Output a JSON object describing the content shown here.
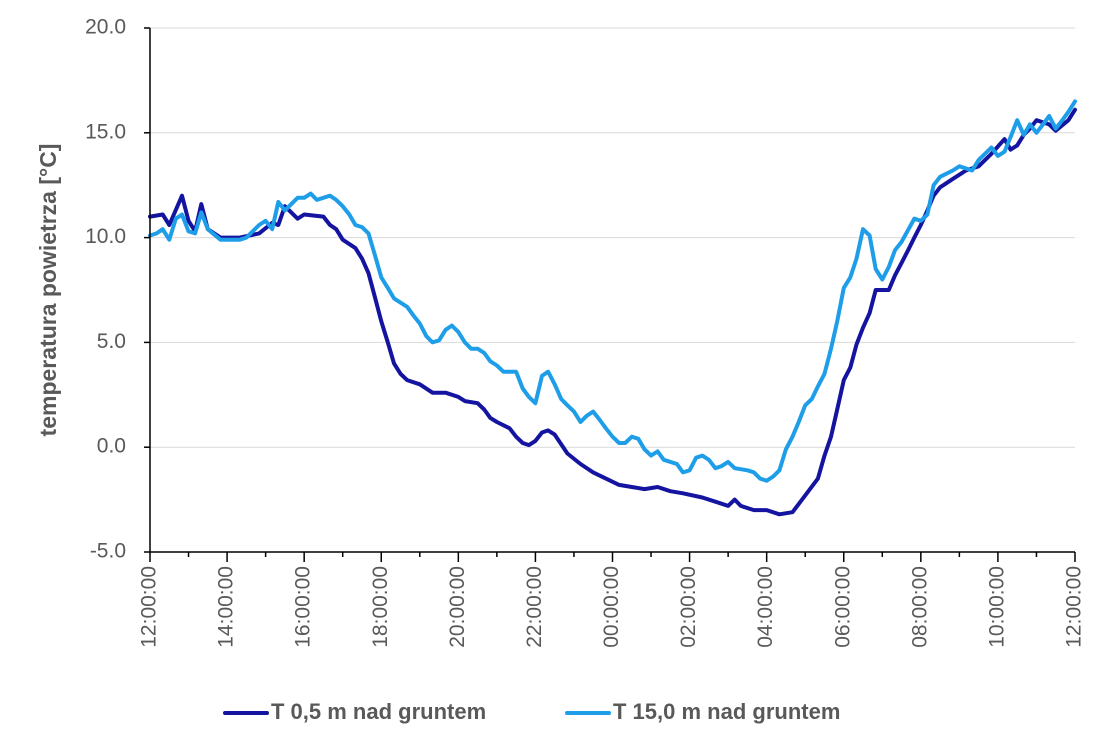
{
  "chart_data": {
    "type": "line",
    "ylabel": "temperatura powietrza [°C]",
    "xlabel": "",
    "ylim": [
      -5,
      20
    ],
    "y_ticks": [
      "-5.0",
      "0.0",
      "5.0",
      "10.0",
      "15.0",
      "20.0"
    ],
    "y_tick_values": [
      -5,
      0,
      5,
      10,
      15,
      20
    ],
    "x_start": "12:00:00",
    "x_end": "12:00:00 (next day)",
    "x_tick_labels": [
      "12:00:00",
      "14:00:00",
      "16:00:00",
      "18:00:00",
      "20:00:00",
      "22:00:00",
      "00:00:00",
      "02:00:00",
      "04:00:00",
      "06:00:00",
      "08:00:00",
      "10:00:00",
      "12:00:00"
    ],
    "x_tick_hours": [
      0,
      2,
      4,
      6,
      8,
      10,
      12,
      14,
      16,
      18,
      20,
      22,
      24
    ],
    "grid": "horizontal",
    "legend_position": "bottom",
    "series": [
      {
        "name": "T 0,5 m nad gruntem",
        "color": "#1414a0",
        "points": [
          [
            0,
            11
          ],
          [
            0.33,
            11.1
          ],
          [
            0.5,
            10.6
          ],
          [
            0.83,
            12
          ],
          [
            1,
            10.8
          ],
          [
            1.17,
            10.3
          ],
          [
            1.33,
            11.6
          ],
          [
            1.5,
            10.4
          ],
          [
            1.83,
            10
          ],
          [
            2.33,
            10
          ],
          [
            2.83,
            10.2
          ],
          [
            3.17,
            10.7
          ],
          [
            3.33,
            10.6
          ],
          [
            3.5,
            11.5
          ],
          [
            3.83,
            10.9
          ],
          [
            4,
            11.1
          ],
          [
            4.5,
            11
          ],
          [
            4.67,
            10.6
          ],
          [
            4.83,
            10.4
          ],
          [
            5,
            9.9
          ],
          [
            5.33,
            9.5
          ],
          [
            5.5,
            9
          ],
          [
            5.67,
            8.3
          ],
          [
            5.83,
            7.2
          ],
          [
            6,
            6
          ],
          [
            6.17,
            5
          ],
          [
            6.33,
            4
          ],
          [
            6.5,
            3.5
          ],
          [
            6.67,
            3.2
          ],
          [
            7,
            3
          ],
          [
            7.33,
            2.6
          ],
          [
            7.67,
            2.6
          ],
          [
            8,
            2.4
          ],
          [
            8.17,
            2.2
          ],
          [
            8.5,
            2.1
          ],
          [
            8.67,
            1.8
          ],
          [
            8.83,
            1.4
          ],
          [
            9,
            1.2
          ],
          [
            9.33,
            0.9
          ],
          [
            9.5,
            0.5
          ],
          [
            9.67,
            0.2
          ],
          [
            9.83,
            0.1
          ],
          [
            10,
            0.3
          ],
          [
            10.17,
            0.7
          ],
          [
            10.33,
            0.8
          ],
          [
            10.5,
            0.6
          ],
          [
            10.83,
            -0.3
          ],
          [
            11.17,
            -0.8
          ],
          [
            11.5,
            -1.2
          ],
          [
            11.83,
            -1.5
          ],
          [
            12.17,
            -1.8
          ],
          [
            12.5,
            -1.9
          ],
          [
            12.83,
            -2
          ],
          [
            13.17,
            -1.9
          ],
          [
            13.5,
            -2.1
          ],
          [
            13.83,
            -2.2
          ],
          [
            14.33,
            -2.4
          ],
          [
            14.67,
            -2.6
          ],
          [
            15,
            -2.8
          ],
          [
            15.17,
            -2.5
          ],
          [
            15.33,
            -2.8
          ],
          [
            15.67,
            -3
          ],
          [
            16,
            -3
          ],
          [
            16.33,
            -3.2
          ],
          [
            16.67,
            -3.1
          ],
          [
            17,
            -2.3
          ],
          [
            17.33,
            -1.5
          ],
          [
            17.5,
            -0.4
          ],
          [
            17.67,
            0.5
          ],
          [
            17.83,
            1.8
          ],
          [
            18,
            3.2
          ],
          [
            18.17,
            3.8
          ],
          [
            18.33,
            4.9
          ],
          [
            18.5,
            5.7
          ],
          [
            18.67,
            6.4
          ],
          [
            18.83,
            7.5
          ],
          [
            19.17,
            7.5
          ],
          [
            19.33,
            8.2
          ],
          [
            19.5,
            8.8
          ],
          [
            19.67,
            9.4
          ],
          [
            19.83,
            10
          ],
          [
            20,
            10.6
          ],
          [
            20.17,
            11.3
          ],
          [
            20.33,
            12
          ],
          [
            20.5,
            12.4
          ],
          [
            20.83,
            12.8
          ],
          [
            21,
            13
          ],
          [
            21.17,
            13.2
          ],
          [
            21.5,
            13.4
          ],
          [
            21.83,
            14
          ],
          [
            22.17,
            14.7
          ],
          [
            22.33,
            14.2
          ],
          [
            22.5,
            14.4
          ],
          [
            22.67,
            14.9
          ],
          [
            22.83,
            15.2
          ],
          [
            23,
            15.6
          ],
          [
            23.33,
            15.4
          ],
          [
            23.5,
            15.1
          ],
          [
            23.83,
            15.6
          ],
          [
            24,
            16.1
          ]
        ]
      },
      {
        "name": "T 15,0 m nad gruntem",
        "color": "#1e9ee8",
        "points": [
          [
            0,
            10.1
          ],
          [
            0.17,
            10.2
          ],
          [
            0.33,
            10.4
          ],
          [
            0.5,
            9.9
          ],
          [
            0.67,
            10.9
          ],
          [
            0.83,
            11.1
          ],
          [
            1,
            10.3
          ],
          [
            1.17,
            10.2
          ],
          [
            1.33,
            11.2
          ],
          [
            1.5,
            10.4
          ],
          [
            1.83,
            9.9
          ],
          [
            2.33,
            9.9
          ],
          [
            2.5,
            10
          ],
          [
            2.83,
            10.6
          ],
          [
            3,
            10.8
          ],
          [
            3.17,
            10.4
          ],
          [
            3.33,
            11.7
          ],
          [
            3.5,
            11.3
          ],
          [
            3.83,
            11.9
          ],
          [
            4,
            11.9
          ],
          [
            4.17,
            12.1
          ],
          [
            4.33,
            11.8
          ],
          [
            4.67,
            12
          ],
          [
            4.83,
            11.8
          ],
          [
            5,
            11.5
          ],
          [
            5.17,
            11.1
          ],
          [
            5.33,
            10.6
          ],
          [
            5.5,
            10.5
          ],
          [
            5.67,
            10.2
          ],
          [
            5.83,
            9.2
          ],
          [
            6,
            8.1
          ],
          [
            6.17,
            7.6
          ],
          [
            6.33,
            7.1
          ],
          [
            6.67,
            6.7
          ],
          [
            6.83,
            6.3
          ],
          [
            7,
            5.9
          ],
          [
            7.17,
            5.3
          ],
          [
            7.33,
            5
          ],
          [
            7.5,
            5.1
          ],
          [
            7.67,
            5.6
          ],
          [
            7.83,
            5.8
          ],
          [
            8,
            5.5
          ],
          [
            8.17,
            5
          ],
          [
            8.33,
            4.7
          ],
          [
            8.5,
            4.7
          ],
          [
            8.67,
            4.5
          ],
          [
            8.83,
            4.1
          ],
          [
            9,
            3.9
          ],
          [
            9.17,
            3.6
          ],
          [
            9.5,
            3.6
          ],
          [
            9.67,
            2.8
          ],
          [
            9.83,
            2.4
          ],
          [
            10,
            2.1
          ],
          [
            10.17,
            3.4
          ],
          [
            10.33,
            3.6
          ],
          [
            10.5,
            3
          ],
          [
            10.67,
            2.3
          ],
          [
            10.83,
            2
          ],
          [
            11,
            1.7
          ],
          [
            11.17,
            1.2
          ],
          [
            11.33,
            1.5
          ],
          [
            11.5,
            1.7
          ],
          [
            11.67,
            1.3
          ],
          [
            11.83,
            0.9
          ],
          [
            12,
            0.5
          ],
          [
            12.17,
            0.2
          ],
          [
            12.33,
            0.2
          ],
          [
            12.5,
            0.5
          ],
          [
            12.67,
            0.4
          ],
          [
            12.83,
            -0.1
          ],
          [
            13,
            -0.4
          ],
          [
            13.17,
            -0.2
          ],
          [
            13.33,
            -0.6
          ],
          [
            13.67,
            -0.8
          ],
          [
            13.83,
            -1.2
          ],
          [
            14,
            -1.1
          ],
          [
            14.17,
            -0.5
          ],
          [
            14.33,
            -0.4
          ],
          [
            14.5,
            -0.6
          ],
          [
            14.67,
            -1
          ],
          [
            14.83,
            -0.9
          ],
          [
            15,
            -0.7
          ],
          [
            15.17,
            -1
          ],
          [
            15.5,
            -1.1
          ],
          [
            15.67,
            -1.2
          ],
          [
            15.83,
            -1.5
          ],
          [
            16,
            -1.6
          ],
          [
            16.17,
            -1.4
          ],
          [
            16.33,
            -1.1
          ],
          [
            16.5,
            -0.1
          ],
          [
            16.67,
            0.5
          ],
          [
            16.83,
            1.2
          ],
          [
            17,
            2
          ],
          [
            17.17,
            2.3
          ],
          [
            17.33,
            2.9
          ],
          [
            17.5,
            3.5
          ],
          [
            17.67,
            4.7
          ],
          [
            17.83,
            6
          ],
          [
            18,
            7.6
          ],
          [
            18.17,
            8.1
          ],
          [
            18.33,
            9
          ],
          [
            18.5,
            10.4
          ],
          [
            18.67,
            10.1
          ],
          [
            18.83,
            8.5
          ],
          [
            19,
            8
          ],
          [
            19.17,
            8.6
          ],
          [
            19.33,
            9.4
          ],
          [
            19.5,
            9.8
          ],
          [
            19.83,
            10.9
          ],
          [
            20,
            10.8
          ],
          [
            20.17,
            11.1
          ],
          [
            20.33,
            12.5
          ],
          [
            20.5,
            12.9
          ],
          [
            20.83,
            13.2
          ],
          [
            21,
            13.4
          ],
          [
            21.17,
            13.3
          ],
          [
            21.33,
            13.2
          ],
          [
            21.5,
            13.7
          ],
          [
            21.83,
            14.3
          ],
          [
            22,
            13.9
          ],
          [
            22.17,
            14.1
          ],
          [
            22.33,
            14.8
          ],
          [
            22.5,
            15.6
          ],
          [
            22.67,
            14.9
          ],
          [
            22.83,
            15.4
          ],
          [
            23,
            15
          ],
          [
            23.17,
            15.4
          ],
          [
            23.33,
            15.8
          ],
          [
            23.5,
            15.2
          ],
          [
            23.67,
            15.6
          ],
          [
            23.83,
            16
          ],
          [
            24,
            16.5
          ]
        ]
      }
    ]
  }
}
